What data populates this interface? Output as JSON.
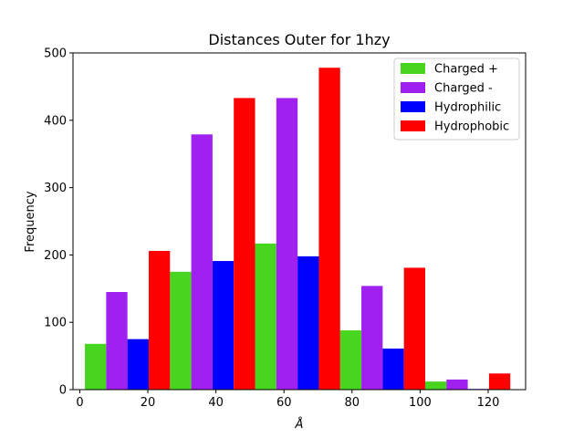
{
  "chart_data": {
    "type": "bar",
    "title": "Distances Outer for 1hzy",
    "xlabel": "Å",
    "ylabel": "Frequency",
    "xlim": [
      -2,
      131
    ],
    "ylim": [
      0,
      500
    ],
    "x_ticks": [
      0,
      20,
      40,
      60,
      80,
      100,
      120
    ],
    "y_ticks": [
      0,
      100,
      200,
      300,
      400,
      500
    ],
    "bin_centers": [
      14,
      39,
      64,
      89,
      114
    ],
    "bin_width": 25,
    "series": [
      {
        "name": "Charged +",
        "color": "#47d51f",
        "values": [
          68,
          175,
          217,
          88,
          12
        ]
      },
      {
        "name": "Charged -",
        "color": "#a020f0",
        "values": [
          145,
          379,
          433,
          154,
          15
        ]
      },
      {
        "name": "Hydrophilic",
        "color": "#0000ff",
        "values": [
          75,
          191,
          198,
          61,
          1
        ]
      },
      {
        "name": "Hydrophobic",
        "color": "#ff0000",
        "values": [
          206,
          433,
          478,
          181,
          24
        ]
      }
    ],
    "grid": false,
    "legend_position": "top-right"
  }
}
